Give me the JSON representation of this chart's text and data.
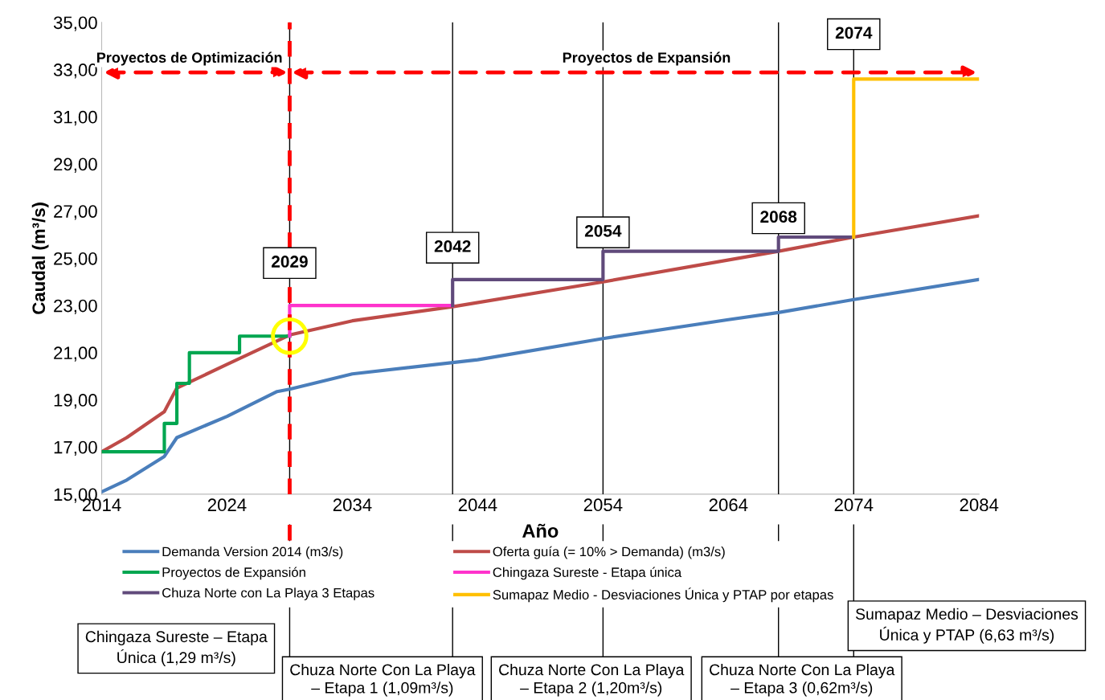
{
  "chart_data": {
    "type": "line",
    "xlabel": "Año",
    "ylabel": "Caudal (m³/s)",
    "xlim": [
      2014,
      2084
    ],
    "xticks": [
      2014,
      2024,
      2034,
      2044,
      2054,
      2064,
      2074,
      2084
    ],
    "ylim": [
      15,
      35
    ],
    "yticks": [
      {
        "value": 15,
        "label": "15,00"
      },
      {
        "value": 17,
        "label": "17,00"
      },
      {
        "value": 19,
        "label": "19,00"
      },
      {
        "value": 21,
        "label": "21,00"
      },
      {
        "value": 23,
        "label": "23,00"
      },
      {
        "value": 25,
        "label": "25,00"
      },
      {
        "value": 27,
        "label": "27,00"
      },
      {
        "value": 29,
        "label": "29,00"
      },
      {
        "value": 31,
        "label": "31,00"
      },
      {
        "value": 33,
        "label": "33,00"
      },
      {
        "value": 35,
        "label": "35,00"
      }
    ],
    "grid": false,
    "legend": "bottom",
    "series": [
      {
        "name": "Demanda Version 2014 (m3/s)",
        "color": "#4a7ebb",
        "x": [
          2014,
          2016,
          2019,
          2020,
          2024,
          2028,
          2029,
          2034,
          2044,
          2054,
          2064,
          2068,
          2074,
          2084
        ],
        "values": [
          15.1,
          15.6,
          16.6,
          17.4,
          18.3,
          19.35,
          19.45,
          20.1,
          20.7,
          21.6,
          22.4,
          22.7,
          23.25,
          24.1
        ]
      },
      {
        "name": "Oferta guía (= 10% > Demanda) (m3/s)",
        "color": "#be4b48",
        "x": [
          2014,
          2016,
          2019,
          2020,
          2024,
          2029,
          2034,
          2042,
          2054,
          2068,
          2074,
          2084
        ],
        "values": [
          16.8,
          17.4,
          18.5,
          19.5,
          20.5,
          21.75,
          22.35,
          22.95,
          24.0,
          25.3,
          25.9,
          26.8
        ]
      },
      {
        "name": "Proyectos de Expansión",
        "color": "#00a650",
        "x": [
          2014,
          2019,
          2019,
          2020,
          2020,
          2021,
          2021,
          2025,
          2025,
          2029
        ],
        "values": [
          16.8,
          16.8,
          18.0,
          18.0,
          19.7,
          19.7,
          21.0,
          21.0,
          21.7,
          21.7
        ]
      },
      {
        "name": "Chingaza Sureste - Etapa única",
        "color": "#ff33cc",
        "x": [
          2029,
          2029,
          2042
        ],
        "values": [
          21.7,
          23.0,
          23.0
        ]
      },
      {
        "name": "Chuza Norte con La Playa 3 Etapas",
        "color": "#604a7b",
        "x": [
          2042,
          2042,
          2054,
          2054,
          2068,
          2068,
          2074
        ],
        "values": [
          23.0,
          24.1,
          24.1,
          25.3,
          25.3,
          25.9,
          25.9
        ]
      },
      {
        "name": "Sumapaz Medio - Desviaciones Única y PTAP por etapas",
        "color": "#ffc000",
        "x": [
          2074,
          2074,
          2084
        ],
        "values": [
          25.9,
          32.6,
          32.6
        ]
      },
      {
        "type": "scatter",
        "color": "#ffff00",
        "marker": "circle",
        "x": [
          2029
        ],
        "values": [
          21.7
        ]
      }
    ],
    "ref_lines": [
      {
        "axis": "x",
        "value": 2029,
        "color": "#000000",
        "line_style": "solid"
      },
      {
        "axis": "x",
        "value": 2042,
        "color": "#000000",
        "line_style": "solid"
      },
      {
        "axis": "x",
        "value": 2054,
        "color": "#000000",
        "line_style": "solid"
      },
      {
        "axis": "x",
        "value": 2068,
        "color": "#000000",
        "line_style": "solid"
      },
      {
        "axis": "x",
        "value": 2074,
        "color": "#000000",
        "line_style": "solid"
      },
      {
        "axis": "x",
        "value": 2029,
        "color": "#ff0000",
        "line_style": "dashed"
      }
    ],
    "annotations": [
      "Proyectos de Optimización",
      "Proyectos de Expansión",
      {
        "text": "2029",
        "x": 2029,
        "y": 24.8
      },
      {
        "text": "2042",
        "x": 2042,
        "y": 25.45
      },
      {
        "text": "2054",
        "x": 2054,
        "y": 26.1
      },
      {
        "text": "2068",
        "x": 2068,
        "y": 26.7
      },
      {
        "text": "2074",
        "x": 2074,
        "y": 34.5
      },
      "Chingaza Sureste – Etapa\nÚnica (1,29 m³/s)",
      "Chuza Norte Con La Playa\n– Etapa 1 (1,09m³/s)",
      "Chuza Norte Con La Playa\n– Etapa 2 (1,20m³/s)",
      "Chuza Norte Con La Playa\n– Etapa 3 (0,62m³/s)",
      "Sumapaz Medio – Desviaciones\nÚnica y PTAP (6,63 m³/s)"
    ]
  }
}
